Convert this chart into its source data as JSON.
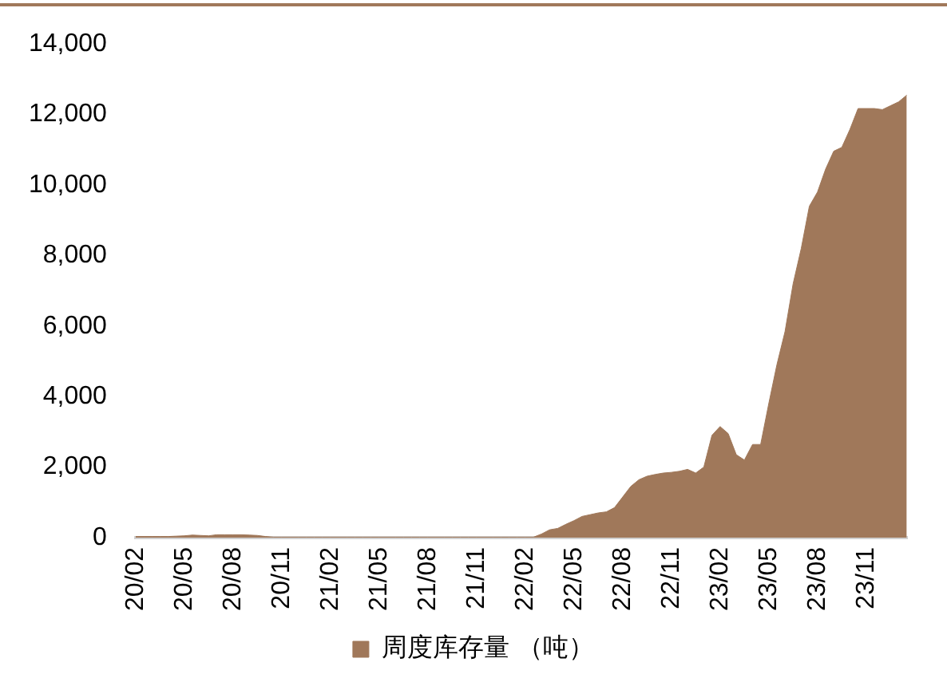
{
  "chart_data": {
    "type": "area",
    "categories": [
      "20/02",
      null,
      null,
      null,
      null,
      null,
      "20/05",
      null,
      null,
      null,
      null,
      null,
      "20/08",
      null,
      null,
      null,
      null,
      null,
      "20/11",
      null,
      null,
      null,
      null,
      null,
      "21/02",
      null,
      null,
      null,
      null,
      null,
      "21/05",
      null,
      null,
      null,
      null,
      null,
      "21/08",
      null,
      null,
      null,
      null,
      null,
      "21/11",
      null,
      null,
      null,
      null,
      null,
      "22/02",
      null,
      null,
      null,
      null,
      null,
      "22/05",
      null,
      null,
      null,
      null,
      null,
      "22/08",
      null,
      null,
      null,
      null,
      null,
      "22/11",
      null,
      null,
      null,
      null,
      null,
      "23/02",
      null,
      null,
      null,
      null,
      null,
      "23/05",
      null,
      null,
      null,
      null,
      null,
      "23/08",
      null,
      null,
      null,
      null,
      null,
      "23/11",
      null,
      null,
      null,
      null,
      null
    ],
    "series": [
      {
        "name": "周度库存量 （吨）",
        "color": "#a0785a",
        "values": [
          30,
          30,
          30,
          30,
          30,
          40,
          50,
          70,
          60,
          50,
          80,
          80,
          80,
          80,
          70,
          60,
          30,
          10,
          10,
          10,
          10,
          10,
          10,
          10,
          10,
          10,
          10,
          10,
          10,
          10,
          10,
          10,
          10,
          10,
          10,
          10,
          10,
          10,
          10,
          10,
          10,
          10,
          10,
          10,
          10,
          10,
          10,
          10,
          10,
          10,
          100,
          220,
          260,
          375,
          480,
          600,
          650,
          700,
          730,
          850,
          1150,
          1450,
          1640,
          1740,
          1790,
          1830,
          1850,
          1880,
          1935,
          1830,
          2000,
          2900,
          3150,
          2950,
          2350,
          2200,
          2640,
          2640,
          3800,
          4900,
          5840,
          7200,
          8200,
          9400,
          9800,
          10450,
          10960,
          11070,
          11580,
          12170,
          12170,
          12170,
          12140,
          12250,
          12360,
          12550
        ]
      }
    ],
    "ylim": [
      0,
      14000
    ],
    "yticks": [
      {
        "value": 0,
        "label": "0"
      },
      {
        "value": 2000,
        "label": "2,000"
      },
      {
        "value": 4000,
        "label": "4,000"
      },
      {
        "value": 6000,
        "label": "6,000"
      },
      {
        "value": 8000,
        "label": "8,000"
      },
      {
        "value": 10000,
        "label": "10,000"
      },
      {
        "value": 12000,
        "label": "12,000"
      },
      {
        "value": 14000,
        "label": "14,000"
      }
    ],
    "grid": false,
    "legend": "bottom",
    "marker": "none"
  }
}
